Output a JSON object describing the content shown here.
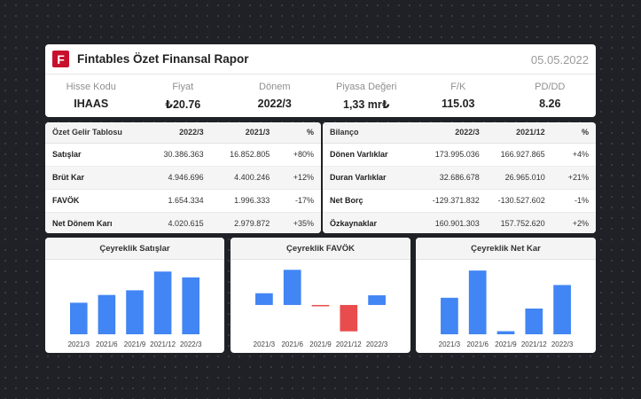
{
  "header": {
    "logo_letter": "F",
    "title": "Fintables Özet Finansal Rapor",
    "date": "05.05.2022",
    "metrics": [
      {
        "label": "Hisse Kodu",
        "value": "IHAAS"
      },
      {
        "label": "Fiyat",
        "value": "₺20.76"
      },
      {
        "label": "Dönem",
        "value": "2022/3"
      },
      {
        "label": "Piyasa Değeri",
        "value": "1,33 mr₺"
      },
      {
        "label": "F/K",
        "value": "115.03"
      },
      {
        "label": "PD/DD",
        "value": "8.26"
      }
    ]
  },
  "income": {
    "headers": [
      "Özet Gelir Tablosu",
      "2022/3",
      "2021/3",
      "%"
    ],
    "rows": [
      {
        "label": "Satışlar",
        "v1": "30.386.363",
        "v2": "16.852.805",
        "pct": "+80%"
      },
      {
        "label": "Brüt Kar",
        "v1": "4.946.696",
        "v2": "4.400.246",
        "pct": "+12%"
      },
      {
        "label": "FAVÖK",
        "v1": "1.654.334",
        "v2": "1.996.333",
        "pct": "-17%"
      },
      {
        "label": "Net Dönem Karı",
        "v1": "4.020.615",
        "v2": "2.979.872",
        "pct": "+35%"
      }
    ]
  },
  "balance": {
    "headers": [
      "Bilanço",
      "2022/3",
      "2021/12",
      "%"
    ],
    "rows": [
      {
        "label": "Dönen Varlıklar",
        "v1": "173.995.036",
        "v2": "166.927.865",
        "pct": "+4%"
      },
      {
        "label": "Duran Varlıklar",
        "v1": "32.686.678",
        "v2": "26.965.010",
        "pct": "+21%"
      },
      {
        "label": "Net Borç",
        "v1": "-129.371.832",
        "v2": "-130.527.602",
        "pct": "-1%"
      },
      {
        "label": "Özkaynaklar",
        "v1": "160.901.303",
        "v2": "157.752.620",
        "pct": "+2%"
      }
    ]
  },
  "colors": {
    "bar_positive": "#4285f4",
    "bar_negative": "#e84c4c",
    "pct_positive": "#2e9e48",
    "pct_negative": "#e03b3b"
  },
  "chart_data": [
    {
      "type": "bar",
      "title": "Çeyreklik Satışlar",
      "categories": [
        "2021/3",
        "2021/6",
        "2021/9",
        "2021/12",
        "2022/3"
      ],
      "values": [
        16.85,
        21.0,
        23.5,
        33.5,
        30.39
      ],
      "ylim": [
        0,
        36
      ]
    },
    {
      "type": "bar",
      "title": "Çeyreklik FAVÖK",
      "categories": [
        "2021/3",
        "2021/6",
        "2021/9",
        "2021/12",
        "2022/3"
      ],
      "values": [
        2.0,
        6.0,
        -0.1,
        -4.5,
        1.65
      ],
      "ylim": [
        -5,
        6.5
      ]
    },
    {
      "type": "bar",
      "title": "Çeyreklik Net Kar",
      "categories": [
        "2021/3",
        "2021/6",
        "2021/9",
        "2021/12",
        "2022/3"
      ],
      "values": [
        2.98,
        5.2,
        0.25,
        2.1,
        4.02
      ],
      "ylim": [
        0,
        5.5
      ]
    }
  ]
}
